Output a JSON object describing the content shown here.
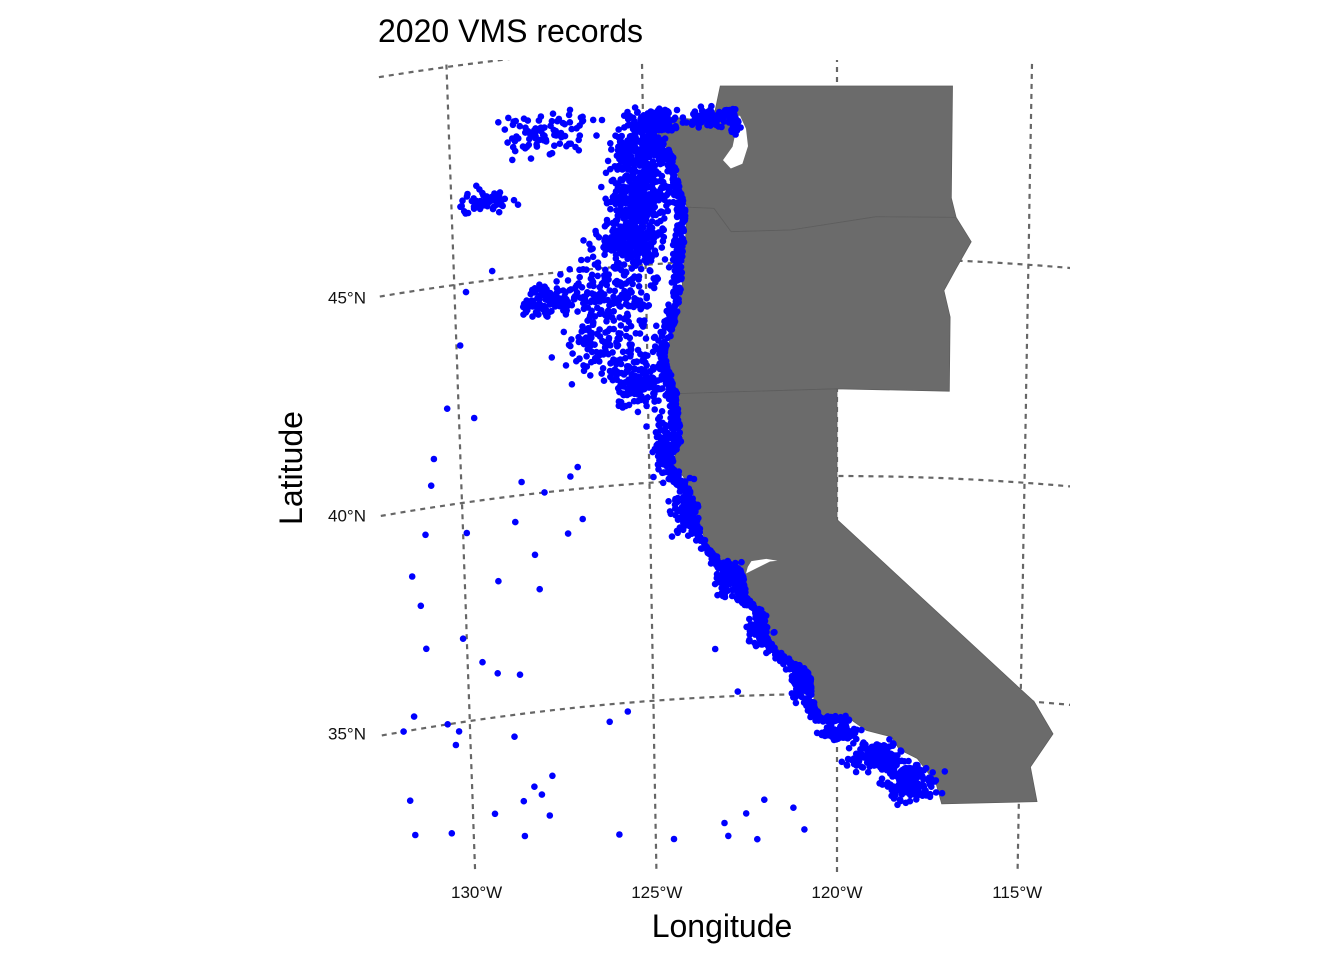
{
  "title": "2020 VMS records",
  "axes": {
    "xlabel": "Longitude",
    "ylabel": "Latitude",
    "lon_ticks": [
      {
        "value": -130,
        "label": "130°W"
      },
      {
        "value": -125,
        "label": "125°W"
      },
      {
        "value": -120,
        "label": "120°W"
      },
      {
        "value": -115,
        "label": "115°W"
      }
    ],
    "lat_ticks": [
      {
        "value": 45,
        "label": "45°N"
      },
      {
        "value": 40,
        "label": "40°N"
      },
      {
        "value": 35,
        "label": "35°N"
      }
    ]
  },
  "colors": {
    "points": "#0000ff",
    "land": "#6b6b6b",
    "graticule": "#666666",
    "background": "#ffffff"
  },
  "regions": [
    "Washington",
    "Oregon",
    "California"
  ],
  "map_data": {
    "type": "scatter-map",
    "point_color": "#0000ff",
    "lon_range": [
      -132,
      -114
    ],
    "lat_range": [
      32,
      49
    ],
    "states": [
      {
        "name": "Washington",
        "outline": [
          [
            -124.7,
            48.4
          ],
          [
            -123.2,
            48.2
          ],
          [
            -123.0,
            49.0
          ],
          [
            -117.03,
            49.0
          ],
          [
            -117.03,
            46.43
          ],
          [
            -116.9,
            45.99
          ],
          [
            -119.0,
            45.95
          ],
          [
            -121.2,
            45.65
          ],
          [
            -122.76,
            45.65
          ],
          [
            -123.2,
            46.2
          ],
          [
            -123.9,
            46.26
          ],
          [
            -124.1,
            46.9
          ],
          [
            -124.2,
            47.4
          ],
          [
            -124.7,
            48.0
          ]
        ]
      },
      {
        "name": "Oregon",
        "outline": [
          [
            -123.9,
            46.26
          ],
          [
            -123.2,
            46.2
          ],
          [
            -122.76,
            45.65
          ],
          [
            -121.2,
            45.65
          ],
          [
            -119.0,
            45.95
          ],
          [
            -116.9,
            45.99
          ],
          [
            -116.5,
            45.45
          ],
          [
            -116.9,
            44.8
          ],
          [
            -117.2,
            44.3
          ],
          [
            -117.03,
            43.7
          ],
          [
            -117.03,
            42.0
          ],
          [
            -120.0,
            42.0
          ],
          [
            -124.2,
            42.0
          ],
          [
            -124.4,
            42.5
          ],
          [
            -124.5,
            43.0
          ],
          [
            -124.2,
            43.7
          ],
          [
            -124.05,
            44.5
          ],
          [
            -123.95,
            45.5
          ]
        ]
      },
      {
        "name": "California",
        "outline": [
          [
            -124.2,
            42.0
          ],
          [
            -120.0,
            42.0
          ],
          [
            -120.0,
            39.0
          ],
          [
            -114.63,
            35.0
          ],
          [
            -114.1,
            34.3
          ],
          [
            -114.7,
            33.5
          ],
          [
            -114.5,
            32.72
          ],
          [
            -117.12,
            32.53
          ],
          [
            -117.28,
            33.0
          ],
          [
            -117.8,
            33.55
          ],
          [
            -118.3,
            33.75
          ],
          [
            -118.5,
            34.03
          ],
          [
            -119.2,
            34.17
          ],
          [
            -119.6,
            34.4
          ],
          [
            -120.45,
            34.45
          ],
          [
            -120.63,
            34.9
          ],
          [
            -120.65,
            35.4
          ],
          [
            -121.3,
            35.8
          ],
          [
            -121.9,
            36.3
          ],
          [
            -121.85,
            36.6
          ],
          [
            -122.0,
            36.95
          ],
          [
            -122.4,
            37.2
          ],
          [
            -122.5,
            37.8
          ],
          [
            -123.0,
            38.0
          ],
          [
            -123.4,
            38.4
          ],
          [
            -123.7,
            38.95
          ],
          [
            -123.8,
            39.6
          ],
          [
            -124.1,
            40.1
          ],
          [
            -124.4,
            40.4
          ],
          [
            -124.1,
            41.0
          ],
          [
            -124.2,
            41.8
          ]
        ]
      }
    ],
    "inlets": [
      {
        "name": "Puget Sound",
        "outline": [
          [
            -122.5,
            48.3
          ],
          [
            -122.35,
            48.0
          ],
          [
            -122.3,
            47.6
          ],
          [
            -122.45,
            47.2
          ],
          [
            -122.75,
            47.1
          ],
          [
            -122.95,
            47.3
          ],
          [
            -122.7,
            47.6
          ],
          [
            -122.6,
            48.0
          ],
          [
            -122.65,
            48.3
          ]
        ]
      },
      {
        "name": "San Francisco Bay",
        "outline": [
          [
            -122.45,
            37.8
          ],
          [
            -122.2,
            37.9
          ],
          [
            -121.8,
            38.06
          ],
          [
            -121.6,
            38.07
          ],
          [
            -121.9,
            38.12
          ],
          [
            -122.3,
            38.08
          ],
          [
            -122.4,
            37.95
          ]
        ]
      }
    ],
    "coastal_clusters": [
      {
        "lon": -124.7,
        "lat": 48.3,
        "lon_spread": 0.5,
        "lat_spread": 0.25,
        "weight": 140
      },
      {
        "lon": -123.3,
        "lat": 48.3,
        "lon_spread": 0.5,
        "lat_spread": 0.2,
        "weight": 80
      },
      {
        "lon": -122.7,
        "lat": 48.2,
        "lon_spread": 0.2,
        "lat_spread": 0.35,
        "weight": 35
      },
      {
        "lon": -125.1,
        "lat": 47.6,
        "lon_spread": 0.7,
        "lat_spread": 0.8,
        "weight": 260
      },
      {
        "lon": -125.1,
        "lat": 46.5,
        "lon_spread": 0.8,
        "lat_spread": 0.6,
        "weight": 240
      },
      {
        "lon": -125.3,
        "lat": 45.6,
        "lon_spread": 0.9,
        "lat_spread": 0.6,
        "weight": 230
      },
      {
        "lon": -127.6,
        "lat": 44.4,
        "lon_spread": 0.6,
        "lat_spread": 0.35,
        "weight": 80
      },
      {
        "lon": -126.0,
        "lat": 44.4,
        "lon_spread": 1.3,
        "lat_spread": 0.9,
        "weight": 200
      },
      {
        "lon": -126.0,
        "lat": 43.2,
        "lon_spread": 1.2,
        "lat_spread": 0.8,
        "weight": 120
      },
      {
        "lon": -125.2,
        "lat": 42.3,
        "lon_spread": 0.7,
        "lat_spread": 0.6,
        "weight": 130
      },
      {
        "lon": -129.1,
        "lat": 46.8,
        "lon_spread": 0.7,
        "lat_spread": 0.3,
        "weight": 60
      },
      {
        "lon": -127.4,
        "lat": 48.2,
        "lon_spread": 1.2,
        "lat_spread": 0.5,
        "weight": 90
      },
      {
        "lon": -124.6,
        "lat": 40.8,
        "lon_spread": 0.3,
        "lat_spread": 0.7,
        "weight": 90
      },
      {
        "lon": -124.1,
        "lat": 39.3,
        "lon_spread": 0.35,
        "lat_spread": 0.5,
        "weight": 70
      },
      {
        "lon": -122.9,
        "lat": 37.7,
        "lon_spread": 0.35,
        "lat_spread": 0.4,
        "weight": 90
      },
      {
        "lon": -122.1,
        "lat": 36.5,
        "lon_spread": 0.3,
        "lat_spread": 0.4,
        "weight": 60
      },
      {
        "lon": -121.0,
        "lat": 35.2,
        "lon_spread": 0.3,
        "lat_spread": 0.4,
        "weight": 60
      },
      {
        "lon": -119.9,
        "lat": 34.1,
        "lon_spread": 0.5,
        "lat_spread": 0.15,
        "weight": 110
      },
      {
        "lon": -118.9,
        "lat": 33.6,
        "lon_spread": 0.7,
        "lat_spread": 0.35,
        "weight": 170
      },
      {
        "lon": -118.0,
        "lat": 33.0,
        "lon_spread": 0.7,
        "lat_spread": 0.4,
        "weight": 170
      }
    ],
    "offshore_points": [
      [
        -129.0,
        45.2
      ],
      [
        -129.7,
        44.8
      ],
      [
        -129.9,
        43.6
      ],
      [
        -130.3,
        42.2
      ],
      [
        -130.7,
        41.1
      ],
      [
        -129.6,
        41.9
      ],
      [
        -130.8,
        40.5
      ],
      [
        -128.4,
        40.3
      ],
      [
        -127.8,
        40.0
      ],
      [
        -127.1,
        40.3
      ],
      [
        -126.9,
        40.5
      ],
      [
        -128.6,
        39.4
      ],
      [
        -129.9,
        39.3
      ],
      [
        -131.0,
        39.4
      ],
      [
        -131.4,
        38.5
      ],
      [
        -131.2,
        37.8
      ],
      [
        -129.1,
        38.1
      ],
      [
        -128.1,
        38.6
      ],
      [
        -127.2,
        39.0
      ],
      [
        -126.8,
        39.3
      ],
      [
        -128.0,
        37.8
      ],
      [
        -129.6,
        36.3
      ],
      [
        -131.8,
        35.0
      ],
      [
        -131.5,
        35.3
      ],
      [
        -130.6,
        35.0
      ],
      [
        -130.3,
        34.8
      ],
      [
        -130.4,
        34.5
      ],
      [
        -131.7,
        33.4
      ],
      [
        -131.6,
        32.6
      ],
      [
        -130.6,
        32.5
      ],
      [
        -129.4,
        32.8
      ],
      [
        -128.6,
        33.0
      ],
      [
        -128.1,
        33.1
      ],
      [
        -128.3,
        33.3
      ],
      [
        -127.8,
        33.5
      ],
      [
        -128.6,
        32.2
      ],
      [
        -127.9,
        32.6
      ],
      [
        -126.0,
        32.0
      ],
      [
        -124.5,
        31.8
      ],
      [
        -123.1,
        32.1
      ],
      [
        -123.0,
        31.8
      ],
      [
        -122.2,
        31.7
      ],
      [
        -122.5,
        32.3
      ],
      [
        -122.0,
        32.6
      ],
      [
        -121.2,
        32.4
      ],
      [
        -120.9,
        31.9
      ],
      [
        -122.7,
        35.1
      ],
      [
        -125.7,
        34.8
      ],
      [
        -126.2,
        34.6
      ],
      [
        -123.3,
        36.1
      ],
      [
        -129.2,
        36.0
      ],
      [
        -128.6,
        35.9
      ],
      [
        -130.1,
        36.9
      ],
      [
        -128.8,
        34.5
      ],
      [
        -131.1,
        36.8
      ]
    ]
  }
}
